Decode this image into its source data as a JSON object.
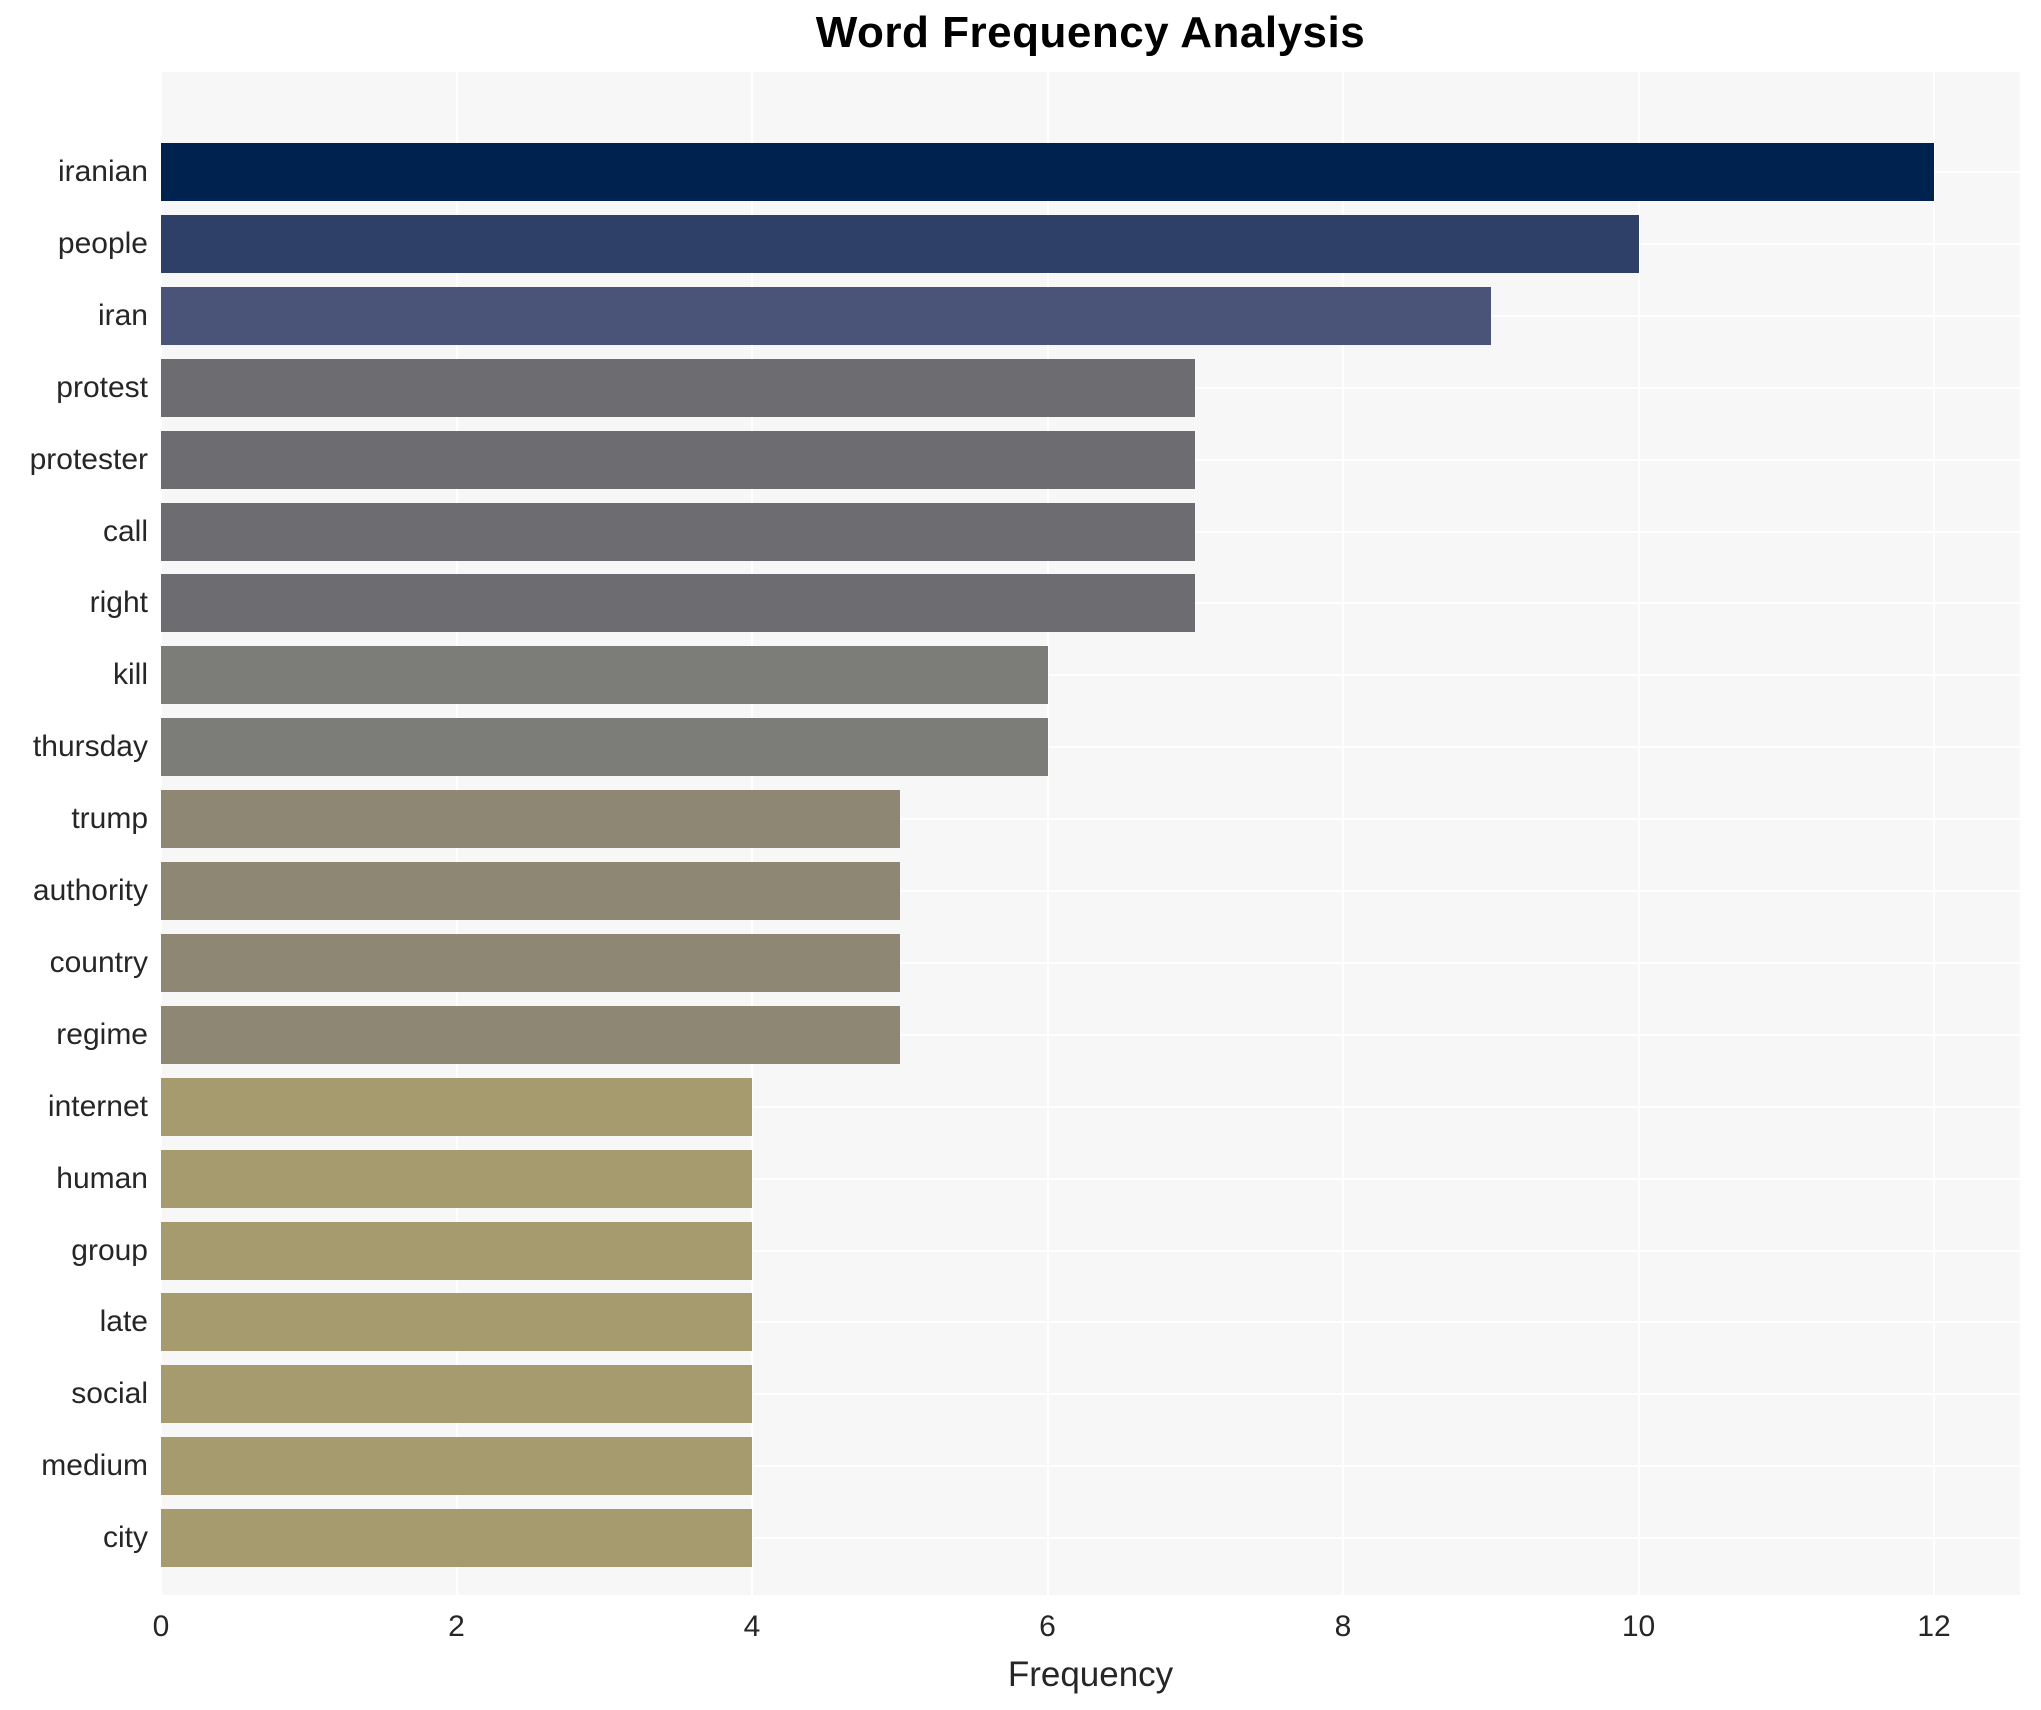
{
  "chart_data": {
    "type": "bar",
    "orientation": "horizontal",
    "title": "Word Frequency Analysis",
    "xlabel": "Frequency",
    "ylabel": "",
    "xlim": [
      0,
      12.58
    ],
    "xticks": [
      0,
      2,
      4,
      6,
      8,
      10,
      12
    ],
    "grid": true,
    "legend": "none",
    "plot_background_color": "#f7f7f7",
    "grid_color": "#ffffff",
    "categories": [
      "iranian",
      "people",
      "iran",
      "protest",
      "protester",
      "call",
      "right",
      "kill",
      "thursday",
      "trump",
      "authority",
      "country",
      "regime",
      "internet",
      "human",
      "group",
      "late",
      "social",
      "medium",
      "city"
    ],
    "values": [
      12,
      10,
      9,
      7,
      7,
      7,
      7,
      6,
      6,
      5,
      5,
      5,
      5,
      4,
      4,
      4,
      4,
      4,
      4,
      4
    ],
    "bars": [
      {
        "word": "iranian",
        "value": 12,
        "color": "#00224e"
      },
      {
        "word": "people",
        "value": 10,
        "color": "#2e4068"
      },
      {
        "word": "iran",
        "value": 9,
        "color": "#4a5378"
      },
      {
        "word": "protest",
        "value": 7,
        "color": "#6c6c71"
      },
      {
        "word": "protester",
        "value": 7,
        "color": "#6c6c71"
      },
      {
        "word": "call",
        "value": 7,
        "color": "#6c6c71"
      },
      {
        "word": "right",
        "value": 7,
        "color": "#6c6c71"
      },
      {
        "word": "kill",
        "value": 6,
        "color": "#7c7c78"
      },
      {
        "word": "thursday",
        "value": 6,
        "color": "#7c7c78"
      },
      {
        "word": "trump",
        "value": 5,
        "color": "#8e8774"
      },
      {
        "word": "authority",
        "value": 5,
        "color": "#8e8774"
      },
      {
        "word": "country",
        "value": 5,
        "color": "#8e8774"
      },
      {
        "word": "regime",
        "value": 5,
        "color": "#8e8774"
      },
      {
        "word": "internet",
        "value": 4,
        "color": "#a59b6e"
      },
      {
        "word": "human",
        "value": 4,
        "color": "#a59b6e"
      },
      {
        "word": "group",
        "value": 4,
        "color": "#a59b6e"
      },
      {
        "word": "late",
        "value": 4,
        "color": "#a59b6e"
      },
      {
        "word": "social",
        "value": 4,
        "color": "#a59b6e"
      },
      {
        "word": "medium",
        "value": 4,
        "color": "#a59b6e"
      },
      {
        "word": "city",
        "value": 4,
        "color": "#a59b6e"
      }
    ]
  }
}
